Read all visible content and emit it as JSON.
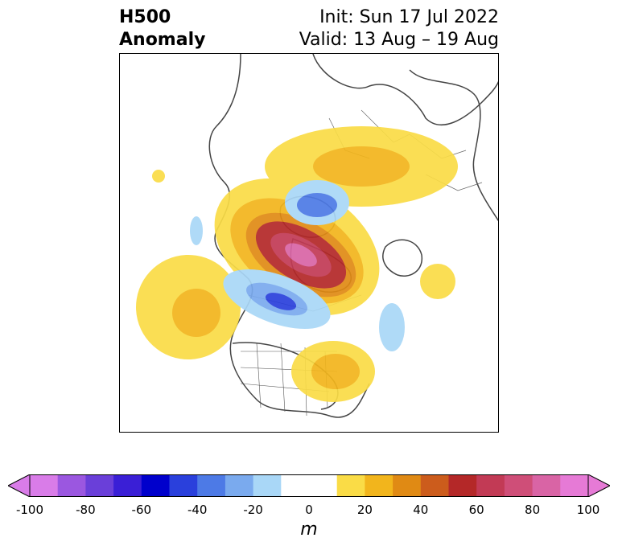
{
  "title": {
    "left_line1": "H500",
    "left_line2": "Anomaly",
    "right_line1": "Init: Sun 17 Jul 2022",
    "right_line2": "Valid: 13 Aug – 19 Aug"
  },
  "map": {
    "projection": "north-polar-stereographic",
    "features": [
      "coastlines",
      "country-borders",
      "us-state-borders"
    ]
  },
  "colorbar": {
    "unit": "m",
    "range": [
      -100,
      100
    ],
    "extend": "both",
    "tick_labels": [
      "-100",
      "-80",
      "-60",
      "-40",
      "-20",
      "0",
      "20",
      "40",
      "60",
      "80",
      "100"
    ],
    "colors": [
      "#d97ce8",
      "#9b57e0",
      "#6a3fd9",
      "#3a1fd6",
      "#0000cc",
      "#2a40dc",
      "#4d7ae6",
      "#7aaaee",
      "#a9d7f7",
      "#ffffff",
      "#ffffff",
      "#fadc46",
      "#f2b51c",
      "#e08a14",
      "#cc5c1c",
      "#b42828",
      "#c23a55",
      "#cf4e78",
      "#d964a5",
      "#e67ad6"
    ]
  }
}
